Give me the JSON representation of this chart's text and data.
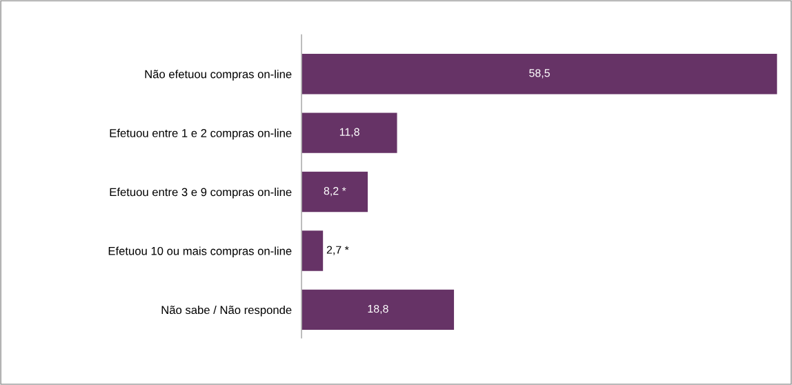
{
  "chart_data": {
    "type": "bar",
    "orientation": "horizontal",
    "categories": [
      "Não efetuou compras on-line",
      "Efetuou entre 1 e 2 compras on-line",
      "Efetuou entre 3 e 9 compras on-line",
      "Efetuou 10 ou mais compras on-line",
      "Não sabe / Não responde"
    ],
    "values": [
      58.5,
      11.8,
      8.2,
      2.7,
      18.8
    ],
    "value_labels": [
      "58,5",
      "11,8",
      "8,2 *",
      "2,7 *",
      "18,8"
    ],
    "color": "#663366",
    "grid": false,
    "legend": false
  }
}
